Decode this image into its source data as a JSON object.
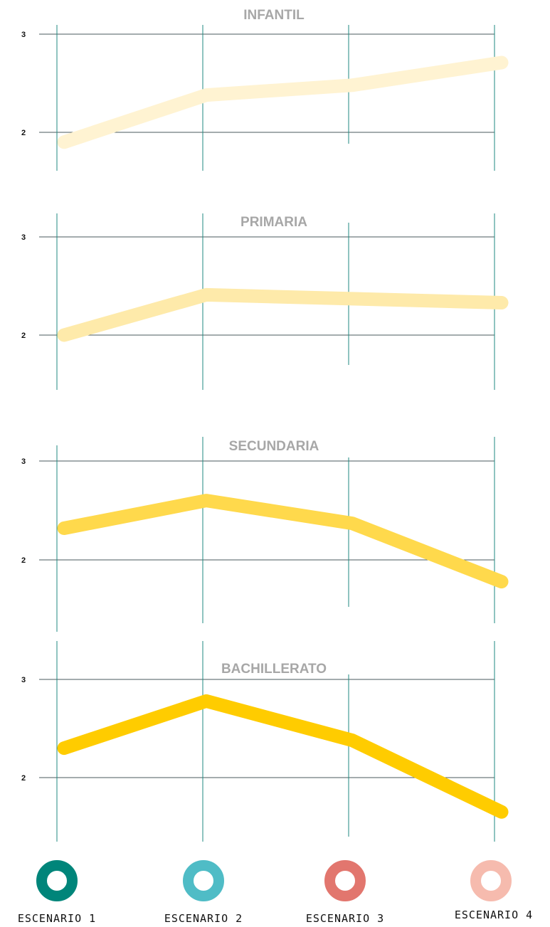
{
  "chart_data": [
    {
      "type": "line",
      "title": "INFANTIL",
      "categories": [
        "ESCENARIO 1",
        "ESCENARIO 2",
        "ESCENARIO 3",
        "ESCENARIO 4"
      ],
      "values": [
        1.9,
        2.38,
        2.48,
        2.71
      ],
      "yticks": [
        2,
        3
      ],
      "ylim": [
        1.6,
        3.1
      ],
      "color": "#fff3d2"
    },
    {
      "type": "line",
      "title": "PRIMARIA",
      "categories": [
        "ESCENARIO 1",
        "ESCENARIO 2",
        "ESCENARIO 3",
        "ESCENARIO 4"
      ],
      "values": [
        2.0,
        2.41,
        2.37,
        2.33
      ],
      "yticks": [
        2,
        3
      ],
      "ylim": [
        1.6,
        3.1
      ],
      "color": "#feeaaa"
    },
    {
      "type": "line",
      "title": "SECUNDARIA",
      "categories": [
        "ESCENARIO 1",
        "ESCENARIO 2",
        "ESCENARIO 3",
        "ESCENARIO 4"
      ],
      "values": [
        2.32,
        2.6,
        2.37,
        1.78
      ],
      "yticks": [
        2,
        3
      ],
      "ylim": [
        1.6,
        3.1
      ],
      "color": "#ffd94c"
    },
    {
      "type": "line",
      "title": "BACHILLERATO",
      "categories": [
        "ESCENARIO 1",
        "ESCENARIO 2",
        "ESCENARIO 3",
        "ESCENARIO 4"
      ],
      "values": [
        2.3,
        2.78,
        2.38,
        1.65
      ],
      "yticks": [
        2,
        3
      ],
      "ylim": [
        1.6,
        3.1
      ],
      "color": "#ffcc00"
    }
  ],
  "legend": [
    {
      "label": "ESCENARIO 1",
      "color": "#00857a"
    },
    {
      "label": "ESCENARIO 2",
      "color": "#4fbcc6"
    },
    {
      "label": "ESCENARIO 3",
      "color": "#e2766e"
    },
    {
      "label": "ESCENARIO 4",
      "color": "#f6bbae"
    }
  ]
}
